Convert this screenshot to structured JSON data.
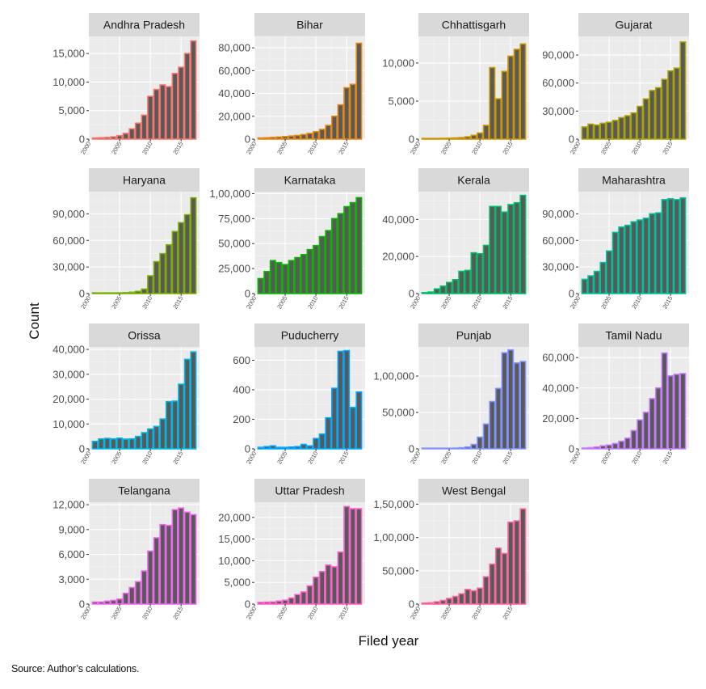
{
  "chart_data": {
    "type": "bar",
    "xlabel": "Filed year",
    "ylabel": "Count",
    "x_ticks": [
      "2000",
      "2005",
      "2010",
      "2015"
    ],
    "years": [
      2001,
      2002,
      2003,
      2004,
      2005,
      2006,
      2007,
      2008,
      2009,
      2010,
      2011,
      2012,
      2013,
      2014,
      2015,
      2016,
      2017
    ],
    "xlim": [
      2000,
      2018
    ],
    "grid": true,
    "legend": "none",
    "panels": [
      {
        "name": "Andhra Pradesh",
        "color": "#F8766D",
        "ylim": [
          0,
          18000
        ],
        "ticks": [
          0,
          5000,
          10000,
          15000
        ],
        "tick_labels": [
          "0",
          "5,000",
          "10,000",
          "15,000"
        ],
        "values": [
          200,
          250,
          300,
          400,
          600,
          1000,
          1800,
          2800,
          4200,
          7500,
          8700,
          9500,
          9200,
          11500,
          12600,
          15000,
          17200
        ]
      },
      {
        "name": "Bihar",
        "color": "#E68613",
        "ylim": [
          0,
          90000
        ],
        "ticks": [
          0,
          20000,
          40000,
          60000,
          80000
        ],
        "tick_labels": [
          "0",
          "20,000",
          "40,000",
          "60,000",
          "80,000"
        ],
        "values": [
          1000,
          1200,
          1500,
          1800,
          2200,
          2700,
          3200,
          4000,
          5000,
          6500,
          8500,
          12000,
          20000,
          30000,
          45000,
          48000,
          84000
        ]
      },
      {
        "name": "Chhattisgarh",
        "color": "#CD9600",
        "ylim": [
          0,
          13500
        ],
        "ticks": [
          0,
          5000,
          10000
        ],
        "tick_labels": [
          "0",
          "5,000",
          "10,000"
        ],
        "values": [
          50,
          60,
          80,
          100,
          120,
          150,
          200,
          300,
          500,
          800,
          1800,
          9400,
          5300,
          8900,
          10900,
          11800,
          12500
        ]
      },
      {
        "name": "Gujarat",
        "color": "#ABA300",
        "ylim": [
          0,
          110000
        ],
        "ticks": [
          0,
          30000,
          60000,
          90000
        ],
        "tick_labels": [
          "0",
          "30,000",
          "60,000",
          "90,000"
        ],
        "values": [
          13000,
          16000,
          15000,
          17000,
          18000,
          20000,
          23000,
          25000,
          28000,
          35000,
          43000,
          52000,
          55000,
          64000,
          73000,
          76000,
          104000
        ]
      },
      {
        "name": "Haryana",
        "color": "#7CAE00",
        "ylim": [
          0,
          115000
        ],
        "ticks": [
          0,
          30000,
          60000,
          90000
        ],
        "tick_labels": [
          "0",
          "30,000",
          "60,000",
          "90,000"
        ],
        "values": [
          300,
          400,
          500,
          600,
          800,
          1000,
          1500,
          2500,
          5000,
          20000,
          36000,
          45000,
          55000,
          70000,
          80000,
          89000,
          108000
        ]
      },
      {
        "name": "Karnataka",
        "color": "#0CB702",
        "ylim": [
          0,
          102000
        ],
        "ticks": [
          0,
          25000,
          50000,
          75000,
          100000
        ],
        "tick_labels": [
          "0",
          "25,000",
          "50,000",
          "75,000",
          "1,00,000"
        ],
        "values": [
          15000,
          22000,
          33000,
          31000,
          29000,
          33000,
          36000,
          39000,
          44000,
          48000,
          57000,
          63000,
          75000,
          80000,
          87000,
          91000,
          96000
        ]
      },
      {
        "name": "Kerala",
        "color": "#00BE67",
        "ylim": [
          0,
          55000
        ],
        "ticks": [
          0,
          20000,
          40000
        ],
        "tick_labels": [
          "0",
          "20,000",
          "40,000"
        ],
        "values": [
          500,
          800,
          2500,
          4000,
          6000,
          7500,
          12000,
          12500,
          22000,
          21500,
          26000,
          47000,
          47000,
          44000,
          48000,
          49000,
          53000
        ]
      },
      {
        "name": "Maharashtra",
        "color": "#00C19A",
        "ylim": [
          0,
          115000
        ],
        "ticks": [
          0,
          30000,
          60000,
          90000
        ],
        "tick_labels": [
          "0",
          "30,000",
          "60,000",
          "90,000"
        ],
        "values": [
          16000,
          20000,
          25000,
          35000,
          48000,
          69000,
          75000,
          77000,
          81000,
          83000,
          85000,
          90000,
          91000,
          106000,
          107000,
          106000,
          108000
        ]
      },
      {
        "name": "Orissa",
        "color": "#00B8E7",
        "ylim": [
          0,
          41000
        ],
        "ticks": [
          0,
          10000,
          20000,
          30000,
          40000
        ],
        "tick_labels": [
          "0",
          "10,000",
          "20,000",
          "30,000",
          "40,000"
        ],
        "values": [
          3000,
          4000,
          4200,
          4000,
          4300,
          3900,
          4000,
          5000,
          6500,
          8000,
          9000,
          12000,
          19000,
          19200,
          26000,
          36000,
          39000
        ]
      },
      {
        "name": "Puducherry",
        "color": "#00A9FF",
        "ylim": [
          0,
          690
        ],
        "ticks": [
          0,
          200,
          400,
          600
        ],
        "tick_labels": [
          "0",
          "200",
          "400",
          "600"
        ],
        "values": [
          10,
          15,
          20,
          10,
          10,
          12,
          15,
          30,
          20,
          70,
          100,
          210,
          410,
          660,
          665,
          280,
          385
        ]
      },
      {
        "name": "Punjab",
        "color": "#8494FF",
        "ylim": [
          0,
          140000
        ],
        "ticks": [
          0,
          50000,
          100000
        ],
        "tick_labels": [
          "0",
          "50,000",
          "1,00,000"
        ],
        "values": [
          300,
          400,
          500,
          600,
          800,
          1000,
          1500,
          2500,
          6000,
          16000,
          34000,
          65000,
          83000,
          132000,
          136000,
          118000,
          120000
        ]
      },
      {
        "name": "Tamil Nadu",
        "color": "#C77CFF",
        "ylim": [
          0,
          67000
        ],
        "ticks": [
          0,
          20000,
          40000,
          60000
        ],
        "tick_labels": [
          "0",
          "20,000",
          "40,000",
          "60,000"
        ],
        "values": [
          500,
          800,
          1200,
          2000,
          2500,
          3500,
          5000,
          7000,
          12000,
          19000,
          24000,
          33000,
          40000,
          63000,
          48000,
          49000,
          49500
        ]
      },
      {
        "name": "Telangana",
        "color": "#ED68ED",
        "ylim": [
          0,
          12300
        ],
        "ticks": [
          0,
          3000,
          6000,
          9000,
          12000
        ],
        "tick_labels": [
          "0",
          "3,000",
          "6,000",
          "9,000",
          "12,000"
        ],
        "values": [
          250,
          250,
          350,
          450,
          600,
          1300,
          2000,
          2700,
          4000,
          6400,
          8000,
          9600,
          9500,
          11400,
          11600,
          11100,
          10800
        ]
      },
      {
        "name": "Uttar Pradesh",
        "color": "#FF61CC",
        "ylim": [
          0,
          23500
        ],
        "ticks": [
          0,
          5000,
          10000,
          15000,
          20000
        ],
        "tick_labels": [
          "0",
          "5,000",
          "10,000",
          "15,000",
          "20,000"
        ],
        "values": [
          400,
          450,
          500,
          700,
          900,
          1400,
          2200,
          2800,
          4200,
          6200,
          7500,
          9000,
          8600,
          12000,
          22500,
          22000,
          22000
        ]
      },
      {
        "name": "West Bengal",
        "color": "#FF68A1",
        "ylim": [
          0,
          153000
        ],
        "ticks": [
          0,
          50000,
          100000,
          150000
        ],
        "tick_labels": [
          "0",
          "50,000",
          "1,00,000",
          "1,50,000"
        ],
        "values": [
          1500,
          2000,
          3500,
          5500,
          8500,
          11500,
          15500,
          22000,
          20000,
          24000,
          41000,
          60000,
          84000,
          76000,
          123000,
          125000,
          143000
        ]
      }
    ]
  },
  "source_text": "Source: Author’s calculations."
}
